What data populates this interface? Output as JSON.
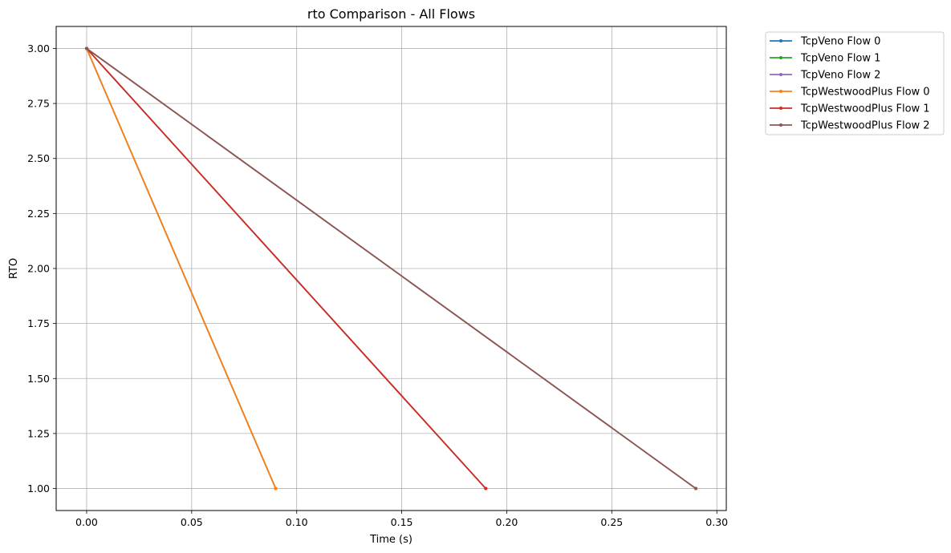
{
  "chart_data": {
    "type": "line",
    "title": "rto Comparison - All Flows",
    "xlabel": "Time (s)",
    "ylabel": "RTO",
    "xlim": [
      -0.0145,
      0.3045
    ],
    "ylim": [
      0.9,
      3.1
    ],
    "xticks": [
      0.0,
      0.05,
      0.1,
      0.15,
      0.2,
      0.25,
      0.3
    ],
    "xtick_labels": [
      "0.00",
      "0.05",
      "0.10",
      "0.15",
      "0.20",
      "0.25",
      "0.30"
    ],
    "yticks": [
      1.0,
      1.25,
      1.5,
      1.75,
      2.0,
      2.25,
      2.5,
      2.75,
      3.0
    ],
    "ytick_labels": [
      "1.00",
      "1.25",
      "1.50",
      "1.75",
      "2.00",
      "2.25",
      "2.50",
      "2.75",
      "3.00"
    ],
    "grid": true,
    "legend_placement": "outside-upper-right",
    "series": [
      {
        "name": "TcpVeno Flow 0",
        "color": "#1f77b4",
        "x": [
          0.0,
          0.09
        ],
        "y": [
          3.0,
          1.0
        ]
      },
      {
        "name": "TcpVeno Flow 1",
        "color": "#2ca02c",
        "x": [
          0.0,
          0.19
        ],
        "y": [
          3.0,
          1.0
        ]
      },
      {
        "name": "TcpVeno Flow 2",
        "color": "#9467bd",
        "x": [
          0.0,
          0.29
        ],
        "y": [
          3.0,
          1.0
        ]
      },
      {
        "name": "TcpWestwoodPlus Flow 0",
        "color": "#ff7f0e",
        "x": [
          0.0,
          0.09
        ],
        "y": [
          3.0,
          1.0
        ]
      },
      {
        "name": "TcpWestwoodPlus Flow 1",
        "color": "#d62728",
        "x": [
          0.0,
          0.19
        ],
        "y": [
          3.0,
          1.0
        ]
      },
      {
        "name": "TcpWestwoodPlus Flow 2",
        "color": "#8c564b",
        "x": [
          0.0,
          0.29
        ],
        "y": [
          3.0,
          1.0
        ]
      }
    ]
  }
}
